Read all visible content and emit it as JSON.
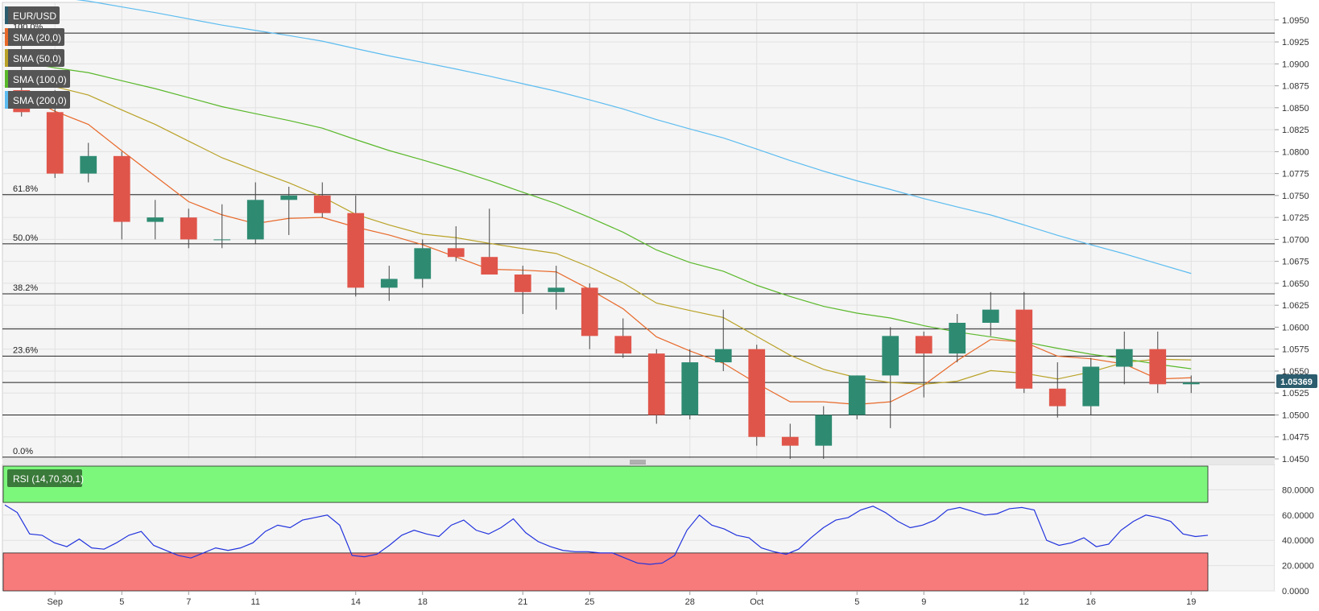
{
  "chart_data": [
    {
      "type": "candlestick",
      "symbol": "EUR/USD",
      "current_price_label": "1.05369",
      "ylim": [
        1.045,
        1.097
      ],
      "y_tick_labels": [
        "1.0450",
        "1.0475",
        "1.0500",
        "1.0525",
        "1.0550",
        "1.0575",
        "1.0600",
        "1.0625",
        "1.0650",
        "1.0675",
        "1.0700",
        "1.0725",
        "1.0750",
        "1.0775",
        "1.0800",
        "1.0825",
        "1.0850",
        "1.0875",
        "1.0900",
        "1.0925",
        "1.0950"
      ],
      "x_tick_labels": [
        "Sep",
        "5",
        "7",
        "11",
        "14",
        "18",
        "21",
        "25",
        "28",
        "Oct",
        "5",
        "9",
        "12",
        "16",
        "19"
      ],
      "indicators": [
        "SMA (20,0)",
        "SMA (50,0)",
        "SMA (100,0)",
        "SMA (200,0)"
      ],
      "fibonacci": [
        {
          "label": "100.0%",
          "value": 1.0935
        },
        {
          "label": "61.8%",
          "value": 1.0751
        },
        {
          "label": "50.0%",
          "value": 1.0695
        },
        {
          "label": "38.2%",
          "value": 1.0638
        },
        {
          "label": "23.6%",
          "value": 1.0567
        },
        {
          "label": "0.0%",
          "value": 1.0452
        }
      ],
      "horizontal_levels": [
        1.0598,
        1.0537,
        1.05
      ],
      "candles": [
        {
          "date": "Aug 31",
          "o": 1.087,
          "h": 1.0945,
          "l": 1.084,
          "c": 1.0845
        },
        {
          "date": "Sep 1",
          "o": 1.0845,
          "h": 1.087,
          "l": 1.077,
          "c": 1.0775
        },
        {
          "date": "Sep 4",
          "o": 1.0775,
          "h": 1.081,
          "l": 1.0765,
          "c": 1.0795
        },
        {
          "date": "Sep 5",
          "o": 1.0795,
          "h": 1.08,
          "l": 1.07,
          "c": 1.072
        },
        {
          "date": "Sep 6",
          "o": 1.072,
          "h": 1.0745,
          "l": 1.07,
          "c": 1.0725
        },
        {
          "date": "Sep 7",
          "o": 1.0725,
          "h": 1.0735,
          "l": 1.069,
          "c": 1.07
        },
        {
          "date": "Sep 8",
          "o": 1.07,
          "h": 1.074,
          "l": 1.069,
          "c": 1.07
        },
        {
          "date": "Sep 11",
          "o": 1.07,
          "h": 1.0765,
          "l": 1.0695,
          "c": 1.0745
        },
        {
          "date": "Sep 12",
          "o": 1.0745,
          "h": 1.076,
          "l": 1.0705,
          "c": 1.075
        },
        {
          "date": "Sep 13",
          "o": 1.075,
          "h": 1.0765,
          "l": 1.0725,
          "c": 1.073
        },
        {
          "date": "Sep 14",
          "o": 1.073,
          "h": 1.075,
          "l": 1.0635,
          "c": 1.0645
        },
        {
          "date": "Sep 15",
          "o": 1.0645,
          "h": 1.067,
          "l": 1.063,
          "c": 1.0655
        },
        {
          "date": "Sep 18",
          "o": 1.0655,
          "h": 1.07,
          "l": 1.0645,
          "c": 1.069
        },
        {
          "date": "Sep 19",
          "o": 1.069,
          "h": 1.0715,
          "l": 1.0675,
          "c": 1.068
        },
        {
          "date": "Sep 20",
          "o": 1.068,
          "h": 1.0735,
          "l": 1.0665,
          "c": 1.066
        },
        {
          "date": "Sep 21",
          "o": 1.066,
          "h": 1.067,
          "l": 1.0615,
          "c": 1.064
        },
        {
          "date": "Sep 22",
          "o": 1.064,
          "h": 1.067,
          "l": 1.062,
          "c": 1.0645
        },
        {
          "date": "Sep 25",
          "o": 1.0645,
          "h": 1.065,
          "l": 1.0575,
          "c": 1.059
        },
        {
          "date": "Sep 26",
          "o": 1.059,
          "h": 1.061,
          "l": 1.0565,
          "c": 1.057
        },
        {
          "date": "Sep 27",
          "o": 1.057,
          "h": 1.0575,
          "l": 1.049,
          "c": 1.05
        },
        {
          "date": "Sep 28",
          "o": 1.05,
          "h": 1.0575,
          "l": 1.0495,
          "c": 1.056
        },
        {
          "date": "Sep 29",
          "o": 1.056,
          "h": 1.062,
          "l": 1.055,
          "c": 1.0575
        },
        {
          "date": "Oct 2",
          "o": 1.0575,
          "h": 1.058,
          "l": 1.0465,
          "c": 1.0475
        },
        {
          "date": "Oct 3",
          "o": 1.0475,
          "h": 1.049,
          "l": 1.045,
          "c": 1.0465
        },
        {
          "date": "Oct 4",
          "o": 1.0465,
          "h": 1.051,
          "l": 1.045,
          "c": 1.05
        },
        {
          "date": "Oct 5",
          "o": 1.05,
          "h": 1.0545,
          "l": 1.0495,
          "c": 1.0545
        },
        {
          "date": "Oct 6",
          "o": 1.0545,
          "h": 1.06,
          "l": 1.0485,
          "c": 1.059
        },
        {
          "date": "Oct 9",
          "o": 1.059,
          "h": 1.0595,
          "l": 1.052,
          "c": 1.057
        },
        {
          "date": "Oct 10",
          "o": 1.057,
          "h": 1.0615,
          "l": 1.056,
          "c": 1.0605
        },
        {
          "date": "Oct 11",
          "o": 1.0605,
          "h": 1.064,
          "l": 1.059,
          "c": 1.062
        },
        {
          "date": "Oct 12",
          "o": 1.062,
          "h": 1.064,
          "l": 1.0525,
          "c": 1.053
        },
        {
          "date": "Oct 13",
          "o": 1.053,
          "h": 1.056,
          "l": 1.0497,
          "c": 1.051
        },
        {
          "date": "Oct 16",
          "o": 1.051,
          "h": 1.0565,
          "l": 1.05,
          "c": 1.0555
        },
        {
          "date": "Oct 17",
          "o": 1.0555,
          "h": 1.0595,
          "l": 1.0535,
          "c": 1.0575
        },
        {
          "date": "Oct 18",
          "o": 1.0575,
          "h": 1.0595,
          "l": 1.0525,
          "c": 1.0535
        },
        {
          "date": "Oct 19",
          "o": 1.0535,
          "h": 1.0545,
          "l": 1.0525,
          "c": 1.0537
        }
      ]
    },
    {
      "type": "line",
      "title": "RSI (14,70,30,1)",
      "ylim": [
        0,
        100
      ],
      "y_tick_labels": [
        "0.0000",
        "20.0000",
        "40.0000",
        "60.0000",
        "80.0000"
      ],
      "overbought": 70,
      "oversold": 30,
      "series": [
        {
          "values": [
            68,
            62,
            45,
            44,
            38,
            35,
            41,
            34,
            33,
            38,
            44,
            47,
            36,
            32,
            28,
            26,
            30,
            34,
            32,
            34,
            38,
            47,
            52,
            50,
            56,
            58,
            60,
            52,
            28,
            27,
            29,
            36,
            44,
            48,
            45,
            43,
            52,
            56,
            48,
            45,
            50,
            57,
            46,
            39,
            35,
            32,
            31,
            31,
            30,
            30,
            26,
            22,
            21,
            22,
            28,
            48,
            60,
            52,
            49,
            44,
            42,
            34,
            31,
            29,
            33,
            42,
            50,
            56,
            58,
            64,
            67,
            62,
            55,
            50,
            52,
            56,
            64,
            66,
            63,
            60,
            61,
            65,
            66,
            64,
            40,
            36,
            38,
            42,
            35,
            37,
            48,
            55,
            60,
            58,
            55,
            45,
            43,
            44
          ]
        }
      ]
    }
  ]
}
